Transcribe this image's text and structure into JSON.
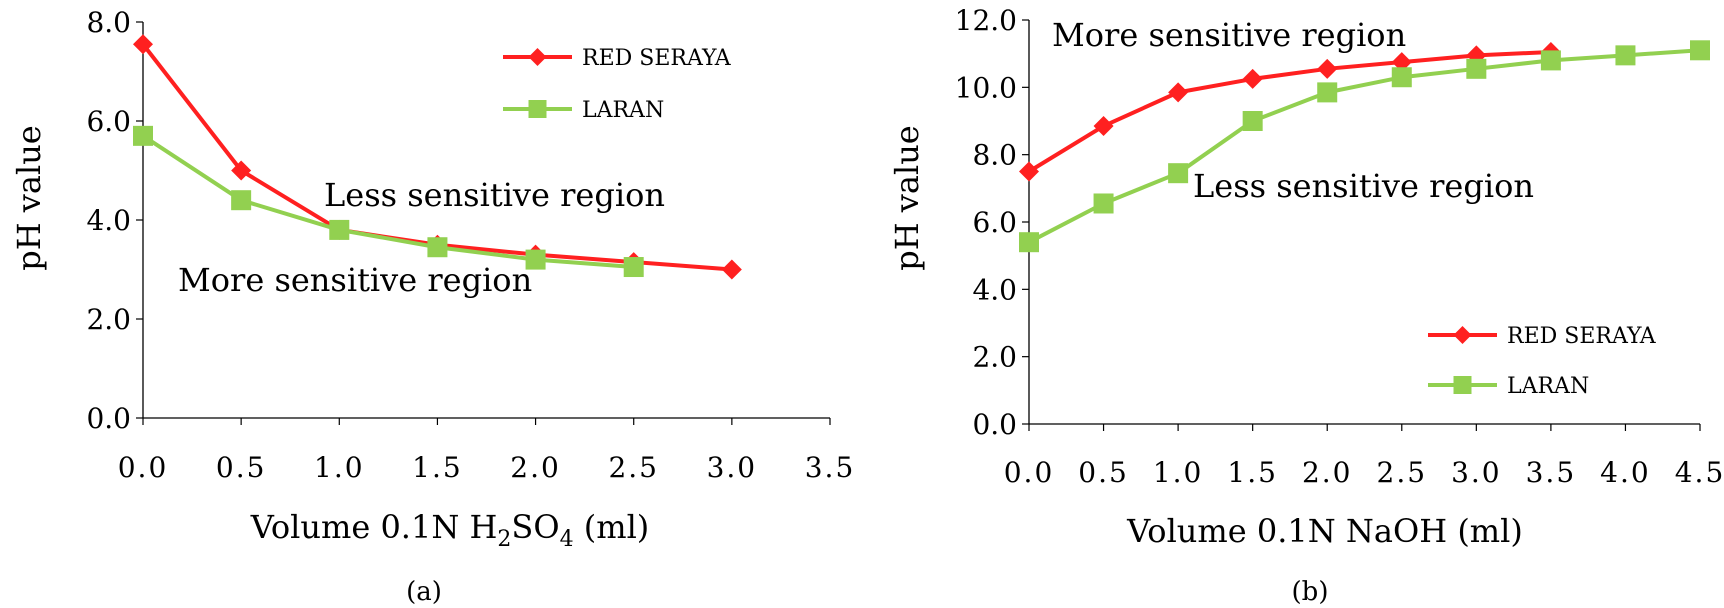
{
  "chart_data": [
    {
      "type": "line",
      "caption": "(a)",
      "xlabel": {
        "prefix": "Volume 0.1N H",
        "sub1": "2",
        "mid": "SO",
        "sub2": "4",
        "suffix": " (ml)"
      },
      "ylabel": "pH value",
      "xlim": [
        0,
        3.5
      ],
      "ylim": [
        0,
        8
      ],
      "xticks": [
        "0.0",
        "0.5",
        "1.0",
        "1.5",
        "2.0",
        "2.5",
        "3.0",
        "3.5"
      ],
      "yticks": [
        "0.0",
        "2.0",
        "4.0",
        "6.0",
        "8.0"
      ],
      "grid": false,
      "legend_position": "top-right",
      "series": [
        {
          "name": "RED SERAYA",
          "color": "#ff2020",
          "marker": "diamond",
          "x": [
            0.0,
            0.5,
            1.0,
            1.5,
            2.0,
            2.5,
            3.0
          ],
          "y": [
            7.55,
            5.0,
            3.8,
            3.5,
            3.3,
            3.15,
            3.0
          ]
        },
        {
          "name": "LARAN",
          "color": "#92d050",
          "marker": "square",
          "x": [
            0.0,
            0.5,
            1.0,
            1.5,
            2.0,
            2.5
          ],
          "y": [
            5.7,
            4.4,
            3.8,
            3.45,
            3.2,
            3.05
          ]
        }
      ],
      "annotations": [
        "Less sensitive region",
        "More sensitive region"
      ]
    },
    {
      "type": "line",
      "caption": "(b)",
      "xlabel": {
        "prefix": "Volume 0.1N NaOH (ml)"
      },
      "ylabel": "pH value",
      "xlim": [
        0,
        4.5
      ],
      "ylim": [
        0,
        12
      ],
      "xticks": [
        "0.0",
        "0.5",
        "1.0",
        "1.5",
        "2.0",
        "2.5",
        "3.0",
        "3.5",
        "4.0",
        "4.5"
      ],
      "yticks": [
        "0.0",
        "2.0",
        "4.0",
        "6.0",
        "8.0",
        "10.0",
        "12.0"
      ],
      "grid": false,
      "legend_position": "bottom-right",
      "series": [
        {
          "name": "RED SERAYA",
          "color": "#ff2020",
          "marker": "diamond",
          "x": [
            0.0,
            0.5,
            1.0,
            1.5,
            2.0,
            2.5,
            3.0,
            3.5
          ],
          "y": [
            7.5,
            8.85,
            9.85,
            10.25,
            10.55,
            10.75,
            10.95,
            11.05
          ]
        },
        {
          "name": "LARAN",
          "color": "#92d050",
          "marker": "square",
          "x": [
            0.0,
            0.5,
            1.0,
            1.5,
            2.0,
            2.5,
            3.0,
            3.5,
            4.0,
            4.5
          ],
          "y": [
            5.4,
            6.55,
            7.45,
            9.0,
            9.85,
            10.3,
            10.55,
            10.8,
            10.95,
            11.1
          ]
        }
      ],
      "annotations": [
        "More sensitive region",
        "Less sensitive region"
      ]
    }
  ]
}
